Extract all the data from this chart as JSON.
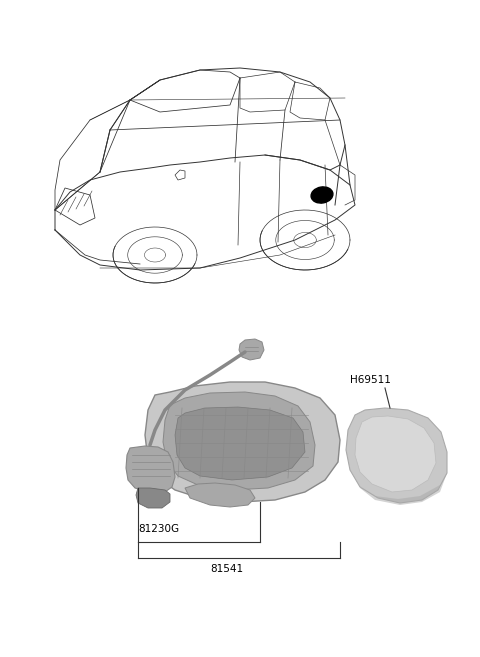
{
  "background_color": "#ffffff",
  "fig_width": 4.8,
  "fig_height": 6.57,
  "dpi": 100,
  "car_color": "#333333",
  "part_gray_light": "#c8c8c8",
  "part_gray_mid": "#a8a8a8",
  "part_gray_dark": "#888888",
  "part_gray_darker": "#686868",
  "text_color": "#000000",
  "line_color": "#333333",
  "label_81230G": "81230G",
  "label_81541": "81541",
  "label_H69511": "H69511"
}
